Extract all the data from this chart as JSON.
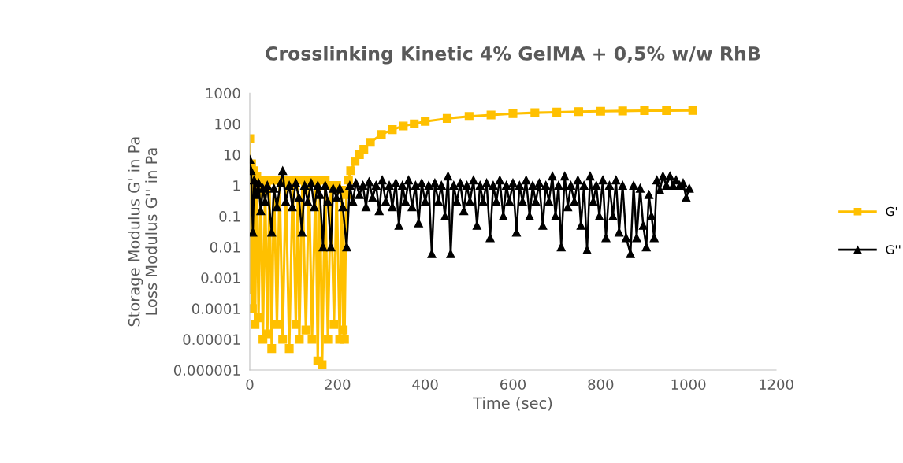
{
  "chart_data": {
    "type": "line",
    "title": "Crosslinking Kinetic 4% GelMA + 0,5% w/w RhB",
    "xlabel": "Time (sec)",
    "ylabel": "Storage Modulus G' in Pa\nLoss Modulus G'' in Pa",
    "log": "y",
    "xlim": [
      0,
      1200
    ],
    "xticks": [
      0,
      200,
      400,
      600,
      800,
      1000,
      1200
    ],
    "ylim": [
      1e-06,
      1000
    ],
    "yticks": [
      {
        "value": 1e-06,
        "label": "0.000001"
      },
      {
        "value": 1e-05,
        "label": "0.00001"
      },
      {
        "value": 0.0001,
        "label": "0.0001"
      },
      {
        "value": 0.001,
        "label": "0.001"
      },
      {
        "value": 0.01,
        "label": "0.01"
      },
      {
        "value": 0.1,
        "label": "0.1"
      },
      {
        "value": 1,
        "label": "1"
      },
      {
        "value": 10,
        "label": "10"
      },
      {
        "value": 100,
        "label": "100"
      },
      {
        "value": 1000,
        "label": "1000"
      }
    ],
    "grid": false,
    "legend": "right",
    "line_style": "solid",
    "series": [
      {
        "name": "G'",
        "color": "#ffc000",
        "marker": "square",
        "x": [
          0,
          2,
          4,
          6,
          8,
          12,
          16,
          20,
          25,
          30,
          35,
          40,
          45,
          50,
          55,
          62,
          68,
          75,
          82,
          90,
          98,
          105,
          110,
          113,
          120,
          128,
          135,
          142,
          150,
          155,
          160,
          165,
          172,
          178,
          185,
          192,
          198,
          205,
          210,
          213,
          216,
          220,
          225,
          230,
          240,
          250,
          260,
          275,
          300,
          325,
          350,
          375,
          400,
          450,
          500,
          550,
          600,
          650,
          700,
          750,
          800,
          850,
          900,
          950,
          1010
        ],
        "values": [
          33,
          0.0004,
          5,
          0.0001,
          3,
          3e-05,
          2,
          5e-05,
          1.5,
          1e-05,
          1.5,
          1.5e-05,
          1.5,
          5e-06,
          1.5,
          3e-05,
          1.5,
          1e-05,
          1.5,
          5e-06,
          1.5,
          3e-05,
          1.5,
          1e-05,
          1.5,
          2e-05,
          1.5,
          1e-05,
          1.5,
          2e-06,
          1.5,
          1.5e-06,
          1.5,
          1e-05,
          1,
          3e-05,
          1,
          1e-05,
          0.7,
          2e-05,
          1e-05,
          0.5,
          1.5,
          3,
          6,
          10,
          15,
          25,
          45,
          65,
          85,
          100,
          120,
          150,
          175,
          195,
          215,
          230,
          240,
          250,
          258,
          263,
          268,
          270,
          272
        ]
      },
      {
        "name": "G''",
        "color": "#000000",
        "marker": "triangle",
        "x": [
          0,
          3,
          7,
          10,
          15,
          20,
          25,
          30,
          35,
          40,
          50,
          55,
          62,
          70,
          75,
          82,
          90,
          97,
          105,
          112,
          119,
          125,
          132,
          140,
          147,
          155,
          160,
          167,
          172,
          178,
          185,
          190,
          198,
          205,
          212,
          221,
          228,
          235,
          242,
          250,
          258,
          265,
          272,
          280,
          288,
          295,
          302,
          310,
          318,
          325,
          333,
          340,
          348,
          355,
          362,
          370,
          378,
          385,
          392,
          400,
          408,
          415,
          422,
          430,
          437,
          445,
          452,
          458,
          465,
          472,
          480,
          488,
          495,
          502,
          510,
          518,
          525,
          532,
          540,
          548,
          555,
          562,
          570,
          578,
          585,
          592,
          600,
          608,
          615,
          622,
          630,
          638,
          645,
          652,
          660,
          668,
          675,
          682,
          690,
          697,
          704,
          710,
          718,
          725,
          732,
          740,
          748,
          755,
          762,
          769,
          776,
          783,
          790,
          797,
          805,
          812,
          820,
          828,
          835,
          842,
          850,
          858,
          868,
          875,
          882,
          890,
          897,
          904,
          910,
          916,
          922,
          928,
          935,
          942,
          950,
          958,
          965,
          972,
          980,
          988,
          995,
          1002
        ],
        "values": [
          7,
          3,
          0.03,
          1.5,
          0.5,
          1.2,
          0.15,
          0.8,
          0.3,
          1,
          0.03,
          0.8,
          0.2,
          1.2,
          3,
          0.3,
          1,
          0.2,
          1.2,
          0.4,
          0.03,
          1,
          0.3,
          1.2,
          0.2,
          1,
          0.5,
          0.01,
          1,
          0.3,
          0.01,
          0.8,
          0.4,
          0.8,
          0.2,
          0.01,
          1,
          0.3,
          1.2,
          0.5,
          1,
          0.2,
          1.3,
          0.4,
          1,
          0.15,
          1.5,
          0.3,
          1,
          0.2,
          1.2,
          0.05,
          1,
          0.3,
          1.5,
          0.2,
          1,
          0.06,
          1.2,
          0.3,
          1,
          0.006,
          1.2,
          0.3,
          1,
          0.1,
          2,
          0.006,
          1,
          0.3,
          1.2,
          0.15,
          1,
          0.3,
          1.5,
          0.05,
          1,
          0.3,
          1.2,
          0.02,
          1,
          0.3,
          1.5,
          0.1,
          1,
          0.3,
          1.2,
          0.03,
          1,
          0.3,
          1.5,
          0.1,
          1,
          0.3,
          1.2,
          0.05,
          1,
          0.3,
          2,
          0.1,
          1,
          0.01,
          2,
          0.2,
          1,
          0.3,
          1.5,
          0.05,
          1,
          0.008,
          2,
          0.3,
          1,
          0.1,
          1.5,
          0.02,
          1,
          0.1,
          1.5,
          0.03,
          1,
          0.02,
          0.006,
          1,
          0.02,
          0.8,
          0.05,
          0.01,
          0.5,
          0.1,
          0.02,
          1.5,
          0.7,
          2,
          1,
          2,
          1,
          1.5,
          1,
          1.2,
          0.4,
          0.8
        ]
      }
    ]
  }
}
